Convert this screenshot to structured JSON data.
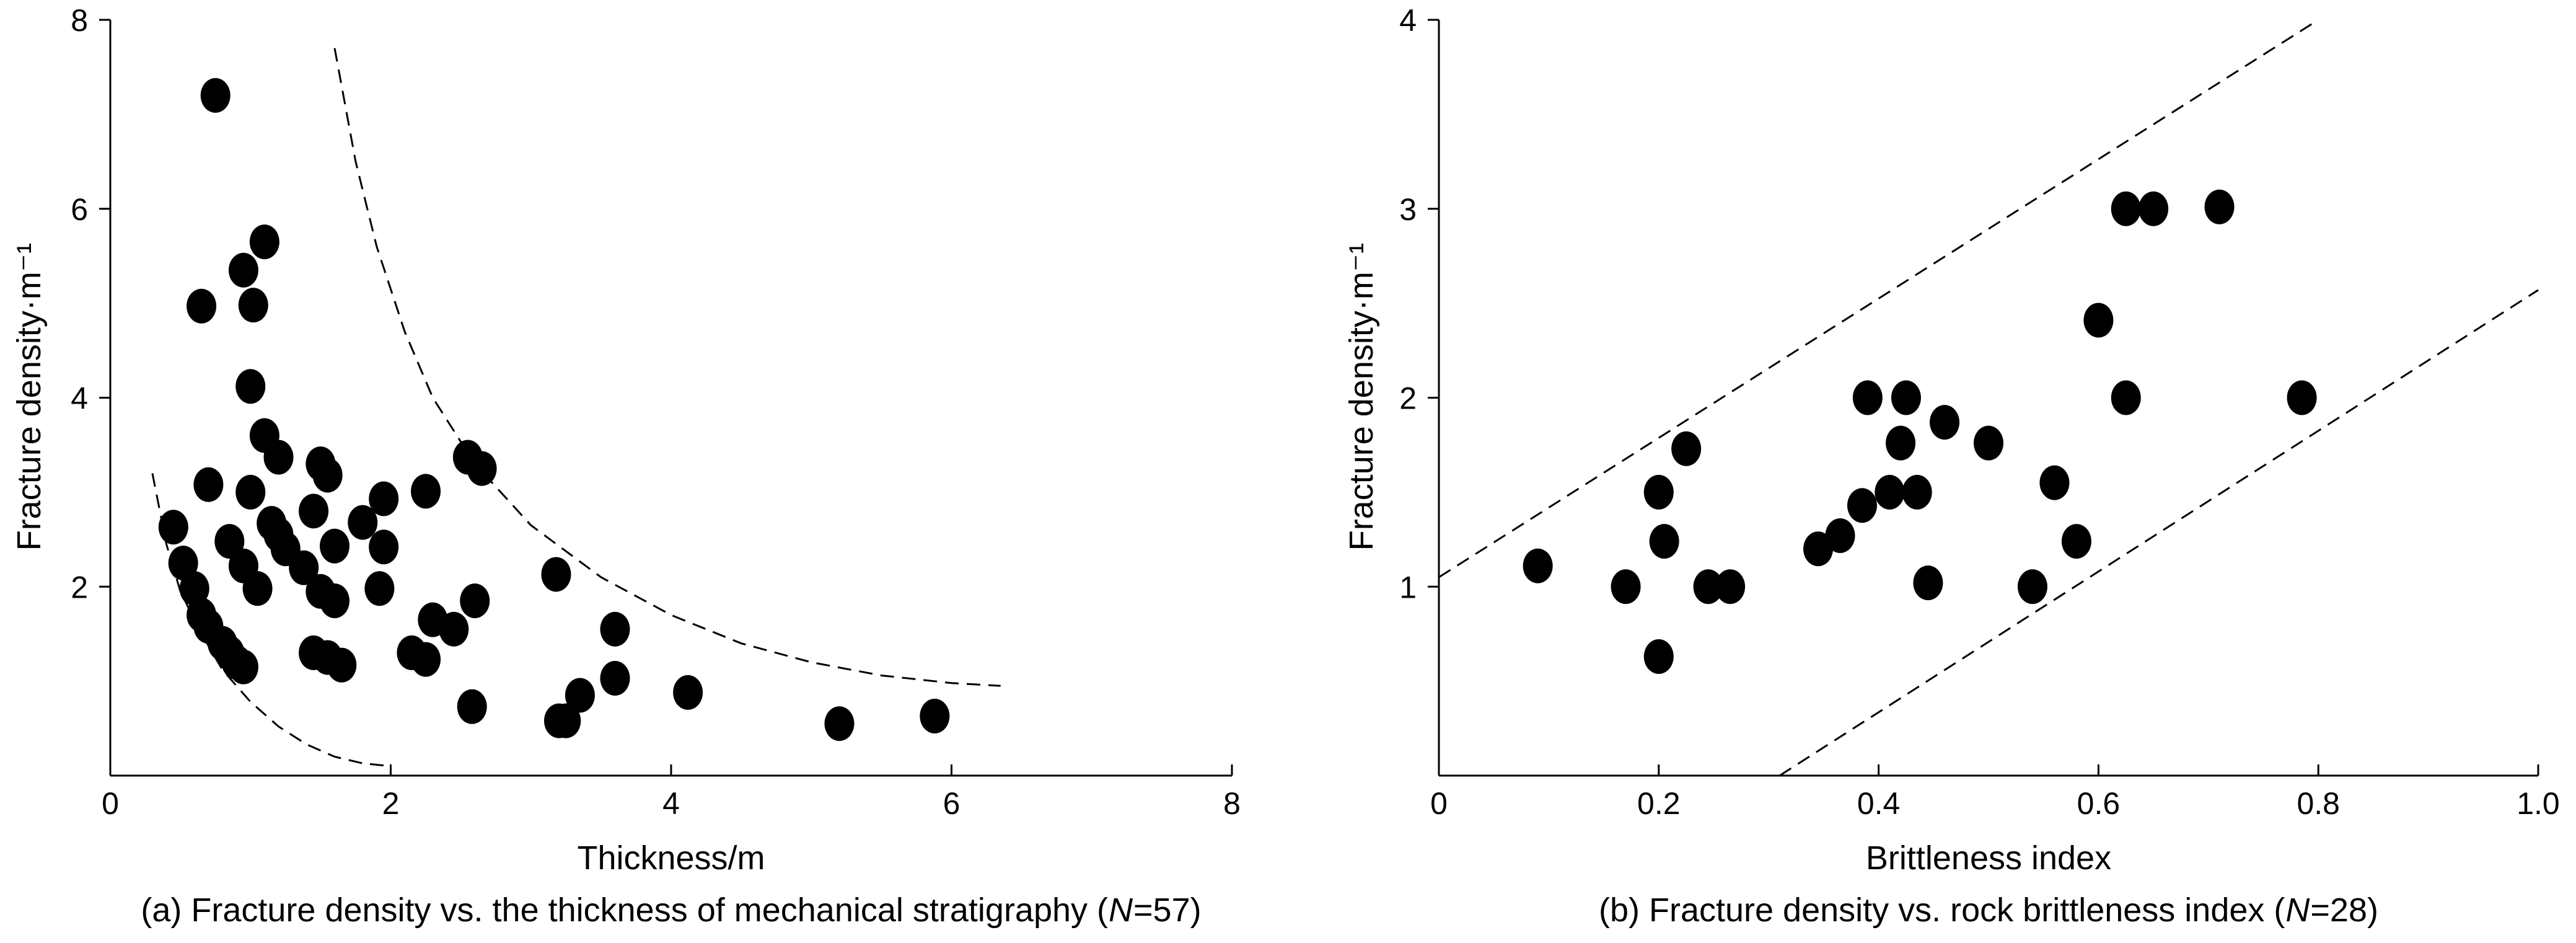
{
  "chart_data": [
    {
      "type": "scatter",
      "id": "a",
      "caption_prefix": "(a) Fracture density vs. the thickness of mechanical stratigraphy (",
      "caption_n": "N",
      "caption_suffix": "=57)",
      "xlabel": "Thickness/m",
      "ylabel": "Fracture density·m⁻¹",
      "xlim": [
        0,
        8
      ],
      "ylim": [
        0,
        8
      ],
      "xticks": [
        "0",
        "2",
        "4",
        "6",
        "8"
      ],
      "xtick_values": [
        0,
        2,
        4,
        6,
        8
      ],
      "yticks": [
        "2",
        "4",
        "6",
        "8"
      ],
      "ytick_values": [
        2,
        4,
        6,
        8
      ],
      "grid": false,
      "marker_color": "#000000",
      "points": [
        [
          0.75,
          7.2
        ],
        [
          1.1,
          5.65
        ],
        [
          0.95,
          5.35
        ],
        [
          0.65,
          4.97
        ],
        [
          1.02,
          4.98
        ],
        [
          1.0,
          4.12
        ],
        [
          1.1,
          3.6
        ],
        [
          1.2,
          3.37
        ],
        [
          0.7,
          3.08
        ],
        [
          1.0,
          3.0
        ],
        [
          1.5,
          3.3
        ],
        [
          1.55,
          3.18
        ],
        [
          1.45,
          2.8
        ],
        [
          1.15,
          2.67
        ],
        [
          1.2,
          2.55
        ],
        [
          1.38,
          2.2
        ],
        [
          0.45,
          2.63
        ],
        [
          0.52,
          2.25
        ],
        [
          0.6,
          1.98
        ],
        [
          0.95,
          2.22
        ],
        [
          0.85,
          2.48
        ],
        [
          1.05,
          1.98
        ],
        [
          1.6,
          2.43
        ],
        [
          1.5,
          1.95
        ],
        [
          1.6,
          1.85
        ],
        [
          1.8,
          2.68
        ],
        [
          1.95,
          2.93
        ],
        [
          1.95,
          2.42
        ],
        [
          1.92,
          1.98
        ],
        [
          2.25,
          3.01
        ],
        [
          2.55,
          3.37
        ],
        [
          2.65,
          3.25
        ],
        [
          0.65,
          1.7
        ],
        [
          0.7,
          1.58
        ],
        [
          0.8,
          1.4
        ],
        [
          0.85,
          1.3
        ],
        [
          0.9,
          1.2
        ],
        [
          0.95,
          1.15
        ],
        [
          1.45,
          1.3
        ],
        [
          1.55,
          1.25
        ],
        [
          1.65,
          1.17
        ],
        [
          2.15,
          1.3
        ],
        [
          2.25,
          1.23
        ],
        [
          2.3,
          1.65
        ],
        [
          2.45,
          1.55
        ],
        [
          2.6,
          1.85
        ],
        [
          2.58,
          0.73
        ],
        [
          3.18,
          2.13
        ],
        [
          3.2,
          0.58
        ],
        [
          3.25,
          0.58
        ],
        [
          3.35,
          0.85
        ],
        [
          3.6,
          1.55
        ],
        [
          3.6,
          1.03
        ],
        [
          4.12,
          0.88
        ],
        [
          5.2,
          0.55
        ],
        [
          5.88,
          0.63
        ],
        [
          1.25,
          2.4
        ]
      ],
      "envelopes": [
        [
          [
            0.3,
            3.2
          ],
          [
            0.4,
            2.45
          ],
          [
            0.5,
            1.95
          ],
          [
            0.65,
            1.5
          ],
          [
            0.8,
            1.12
          ],
          [
            1.0,
            0.78
          ],
          [
            1.2,
            0.52
          ],
          [
            1.4,
            0.33
          ],
          [
            1.6,
            0.2
          ],
          [
            1.8,
            0.13
          ],
          [
            2.0,
            0.1
          ]
        ],
        [
          [
            1.6,
            7.7
          ],
          [
            1.75,
            6.5
          ],
          [
            1.9,
            5.6
          ],
          [
            2.1,
            4.7
          ],
          [
            2.3,
            4.0
          ],
          [
            2.6,
            3.3
          ],
          [
            3.0,
            2.65
          ],
          [
            3.5,
            2.1
          ],
          [
            4.0,
            1.7
          ],
          [
            4.5,
            1.4
          ],
          [
            5.0,
            1.2
          ],
          [
            5.5,
            1.06
          ],
          [
            6.0,
            0.98
          ],
          [
            6.35,
            0.95
          ]
        ]
      ]
    },
    {
      "type": "scatter",
      "id": "b",
      "caption_prefix": "(b) Fracture density vs. rock brittleness index (",
      "caption_n": "N",
      "caption_suffix": "=28)",
      "xlabel": "Brittleness index",
      "ylabel": "Fracture density·m⁻¹",
      "xlim": [
        0,
        1.0
      ],
      "ylim": [
        0,
        4
      ],
      "xticks": [
        "0",
        "0.2",
        "0.4",
        "0.6",
        "0.8",
        "1.0"
      ],
      "xtick_values": [
        0,
        0.2,
        0.4,
        0.6,
        0.8,
        1.0
      ],
      "yticks": [
        "1",
        "2",
        "3",
        "4"
      ],
      "ytick_values": [
        1,
        2,
        3,
        4
      ],
      "grid": false,
      "marker_color": "#000000",
      "points": [
        [
          0.09,
          1.11
        ],
        [
          0.17,
          1.0
        ],
        [
          0.2,
          0.63
        ],
        [
          0.2,
          1.5
        ],
        [
          0.205,
          1.24
        ],
        [
          0.225,
          1.73
        ],
        [
          0.245,
          1.0
        ],
        [
          0.265,
          1.0
        ],
        [
          0.345,
          1.2
        ],
        [
          0.365,
          1.27
        ],
        [
          0.385,
          1.43
        ],
        [
          0.39,
          2.0
        ],
        [
          0.41,
          1.5
        ],
        [
          0.42,
          1.76
        ],
        [
          0.425,
          2.0
        ],
        [
          0.435,
          1.5
        ],
        [
          0.445,
          1.02
        ],
        [
          0.46,
          1.87
        ],
        [
          0.5,
          1.76
        ],
        [
          0.54,
          1.0
        ],
        [
          0.56,
          1.55
        ],
        [
          0.58,
          1.24
        ],
        [
          0.6,
          2.41
        ],
        [
          0.625,
          3.0
        ],
        [
          0.625,
          2.0
        ],
        [
          0.65,
          3.0
        ],
        [
          0.71,
          3.01
        ],
        [
          0.785,
          2.0
        ]
      ],
      "envelopes": [
        [
          [
            0,
            1.05
          ],
          [
            0.8,
            4.0
          ]
        ],
        [
          [
            0.31,
            0
          ],
          [
            1.0,
            2.57
          ]
        ]
      ]
    }
  ]
}
